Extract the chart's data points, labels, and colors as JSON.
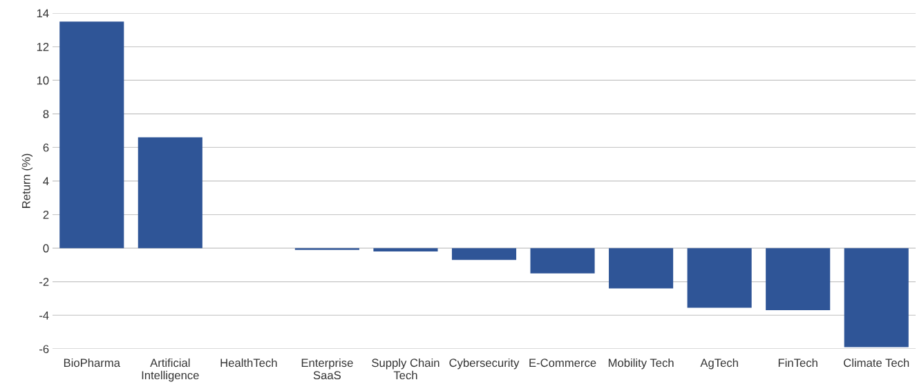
{
  "chart_data": {
    "type": "bar",
    "ylabel": "Return (%)",
    "categories": [
      "BioPharma",
      "Artificial\nIntelligence",
      "HealthTech",
      "Enterprise\nSaaS",
      "Supply Chain\nTech",
      "Cybersecurity",
      "E-Commerce",
      "Mobility Tech",
      "AgTech",
      "FinTech",
      "Climate Tech"
    ],
    "values": [
      13.5,
      6.6,
      0,
      -0.1,
      -0.2,
      -0.7,
      -1.5,
      -2.4,
      -3.55,
      -3.7,
      -5.9
    ],
    "color": "#2f5597",
    "ylim": [
      -6,
      14
    ],
    "yticks": [
      -6,
      -4,
      -2,
      0,
      2,
      4,
      6,
      8,
      10,
      12,
      14
    ],
    "grid": "y"
  }
}
